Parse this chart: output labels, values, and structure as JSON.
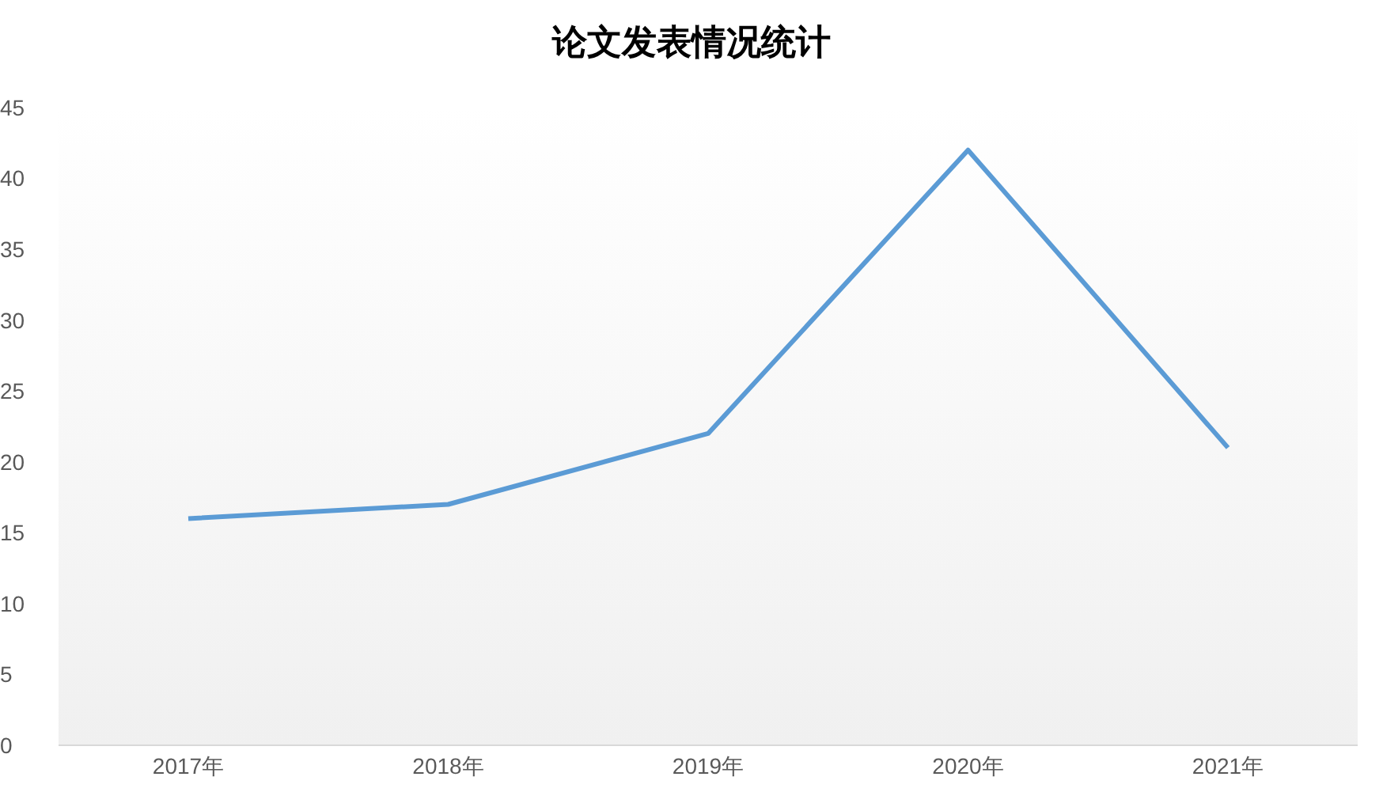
{
  "chart_data": {
    "type": "line",
    "title": "论文发表情况统计",
    "categories": [
      "2017年",
      "2018年",
      "2019年",
      "2020年",
      "2021年"
    ],
    "series": [
      {
        "color": "#5b9bd5",
        "values": [
          16,
          17,
          22,
          42,
          21
        ]
      }
    ],
    "ylim": [
      0,
      45
    ],
    "yticks": [
      0,
      5,
      10,
      15,
      20,
      25,
      30,
      35,
      40,
      45
    ],
    "marker": "none",
    "line_style": "solid"
  }
}
